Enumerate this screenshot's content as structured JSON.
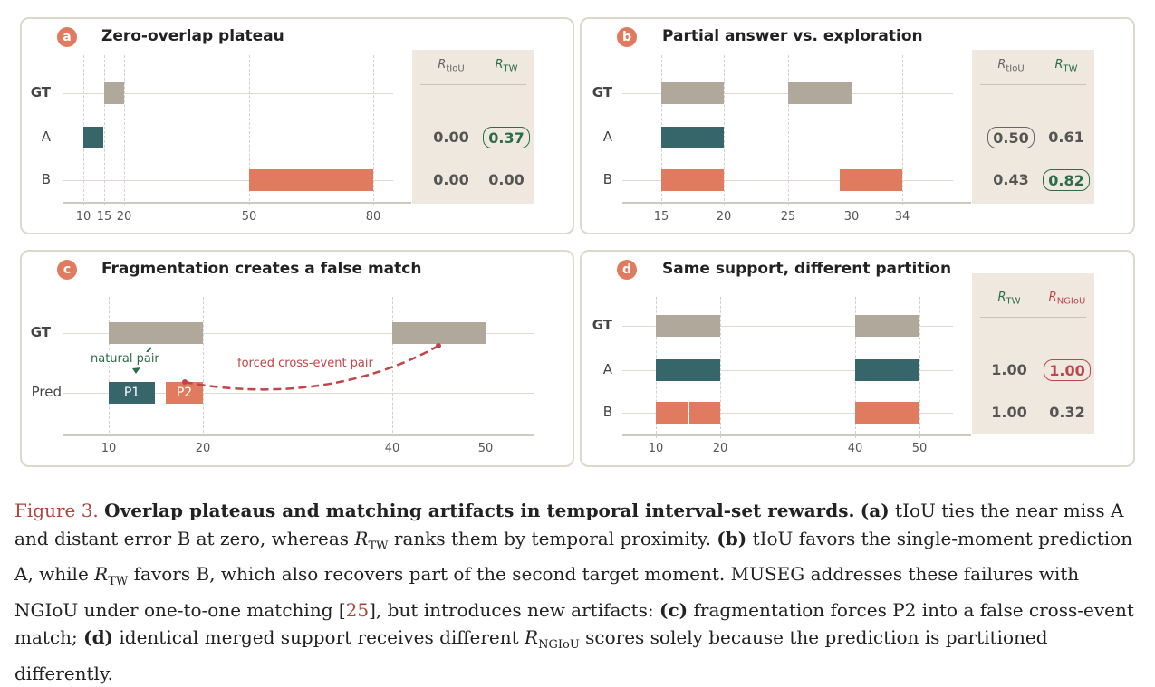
{
  "colors": {
    "gt": "#b1a89c",
    "teal": "#36656a",
    "orange": "#e07b5f",
    "red": "#c0454a",
    "green": "#2e6b4a"
  },
  "panels": {
    "a": {
      "badge": "a",
      "title": "Zero-overlap plateau",
      "rows": [
        "GT",
        "A",
        "B"
      ],
      "ticks": [
        "10",
        "15",
        "20",
        "50",
        "80"
      ],
      "cols": [
        {
          "main": "R",
          "sub": "tIoU"
        },
        {
          "main": "R",
          "sub": "TW"
        }
      ],
      "scores": {
        "A": [
          "0.00",
          "0.37"
        ],
        "B": [
          "0.00",
          "0.00"
        ]
      },
      "intervals": {
        "GT": [
          [
            15,
            20
          ]
        ],
        "A": [
          [
            10,
            15
          ]
        ],
        "B": [
          [
            50,
            80
          ]
        ]
      }
    },
    "b": {
      "badge": "b",
      "title": "Partial answer vs. exploration",
      "rows": [
        "GT",
        "A",
        "B"
      ],
      "ticks": [
        "15",
        "20",
        "25",
        "30",
        "34"
      ],
      "cols": [
        {
          "main": "R",
          "sub": "tIoU"
        },
        {
          "main": "R",
          "sub": "TW"
        }
      ],
      "scores": {
        "A": [
          "0.50",
          "0.61"
        ],
        "B": [
          "0.43",
          "0.82"
        ]
      },
      "intervals": {
        "GT": [
          [
            15,
            20
          ],
          [
            25,
            30
          ]
        ],
        "A": [
          [
            15,
            20
          ]
        ],
        "B": [
          [
            15,
            20
          ],
          [
            29,
            34
          ]
        ]
      }
    },
    "c": {
      "badge": "c",
      "title": "Fragmentation creates a false match",
      "rows": [
        "GT",
        "Pred"
      ],
      "ticks": [
        "10",
        "20",
        "40",
        "50"
      ],
      "natural": "natural pair",
      "forced": "forced cross-event pair",
      "p1": "P1",
      "p2": "P2",
      "intervals": {
        "GT": [
          [
            10,
            20
          ],
          [
            40,
            50
          ]
        ],
        "P1": [
          10,
          15
        ],
        "P2": [
          16,
          20
        ]
      }
    },
    "d": {
      "badge": "d",
      "title": "Same support, different partition",
      "rows": [
        "GT",
        "A",
        "B"
      ],
      "ticks": [
        "10",
        "20",
        "40",
        "50"
      ],
      "cols": [
        {
          "main": "R",
          "sub": "TW"
        },
        {
          "main": "R",
          "sub": "NGIoU"
        }
      ],
      "scores": {
        "A": [
          "1.00",
          "1.00"
        ],
        "B": [
          "1.00",
          "0.32"
        ]
      },
      "intervals": {
        "GT": [
          [
            10,
            20
          ],
          [
            40,
            50
          ]
        ],
        "A": [
          [
            10,
            20
          ],
          [
            40,
            50
          ]
        ],
        "B": [
          [
            10,
            15
          ],
          [
            15,
            20
          ],
          [
            40,
            50
          ]
        ]
      }
    }
  },
  "caption": {
    "fig": "Figure 3.",
    "bold": "Overlap plateaus and matching artifacts in temporal interval-set rewards.",
    "t1": "(a)",
    "t2": " tIoU ties the near miss A and distant error B at zero, whereas ",
    "m1": "R",
    "m1sub": "TW",
    "t3": " ranks them by temporal proximity. ",
    "t4": "(b)",
    "t5": " tIoU favors the single-moment prediction A, while ",
    "m2": "R",
    "m2sub": "TW",
    "t6": " favors B, which also recovers part of the second target moment. MUSEG addresses these failures with NGIoU under one-to-one matching [",
    "ref": "25",
    "t7": "], but introduces new artifacts: ",
    "t8": "(c)",
    "t9": " fragmentation forces P2 into a false cross-event match; ",
    "t10": "(d)",
    "t11": " identical merged support receives different ",
    "m3": "R",
    "m3sub": "NGIoU",
    "t12": " scores solely because the prediction is partitioned differently."
  }
}
